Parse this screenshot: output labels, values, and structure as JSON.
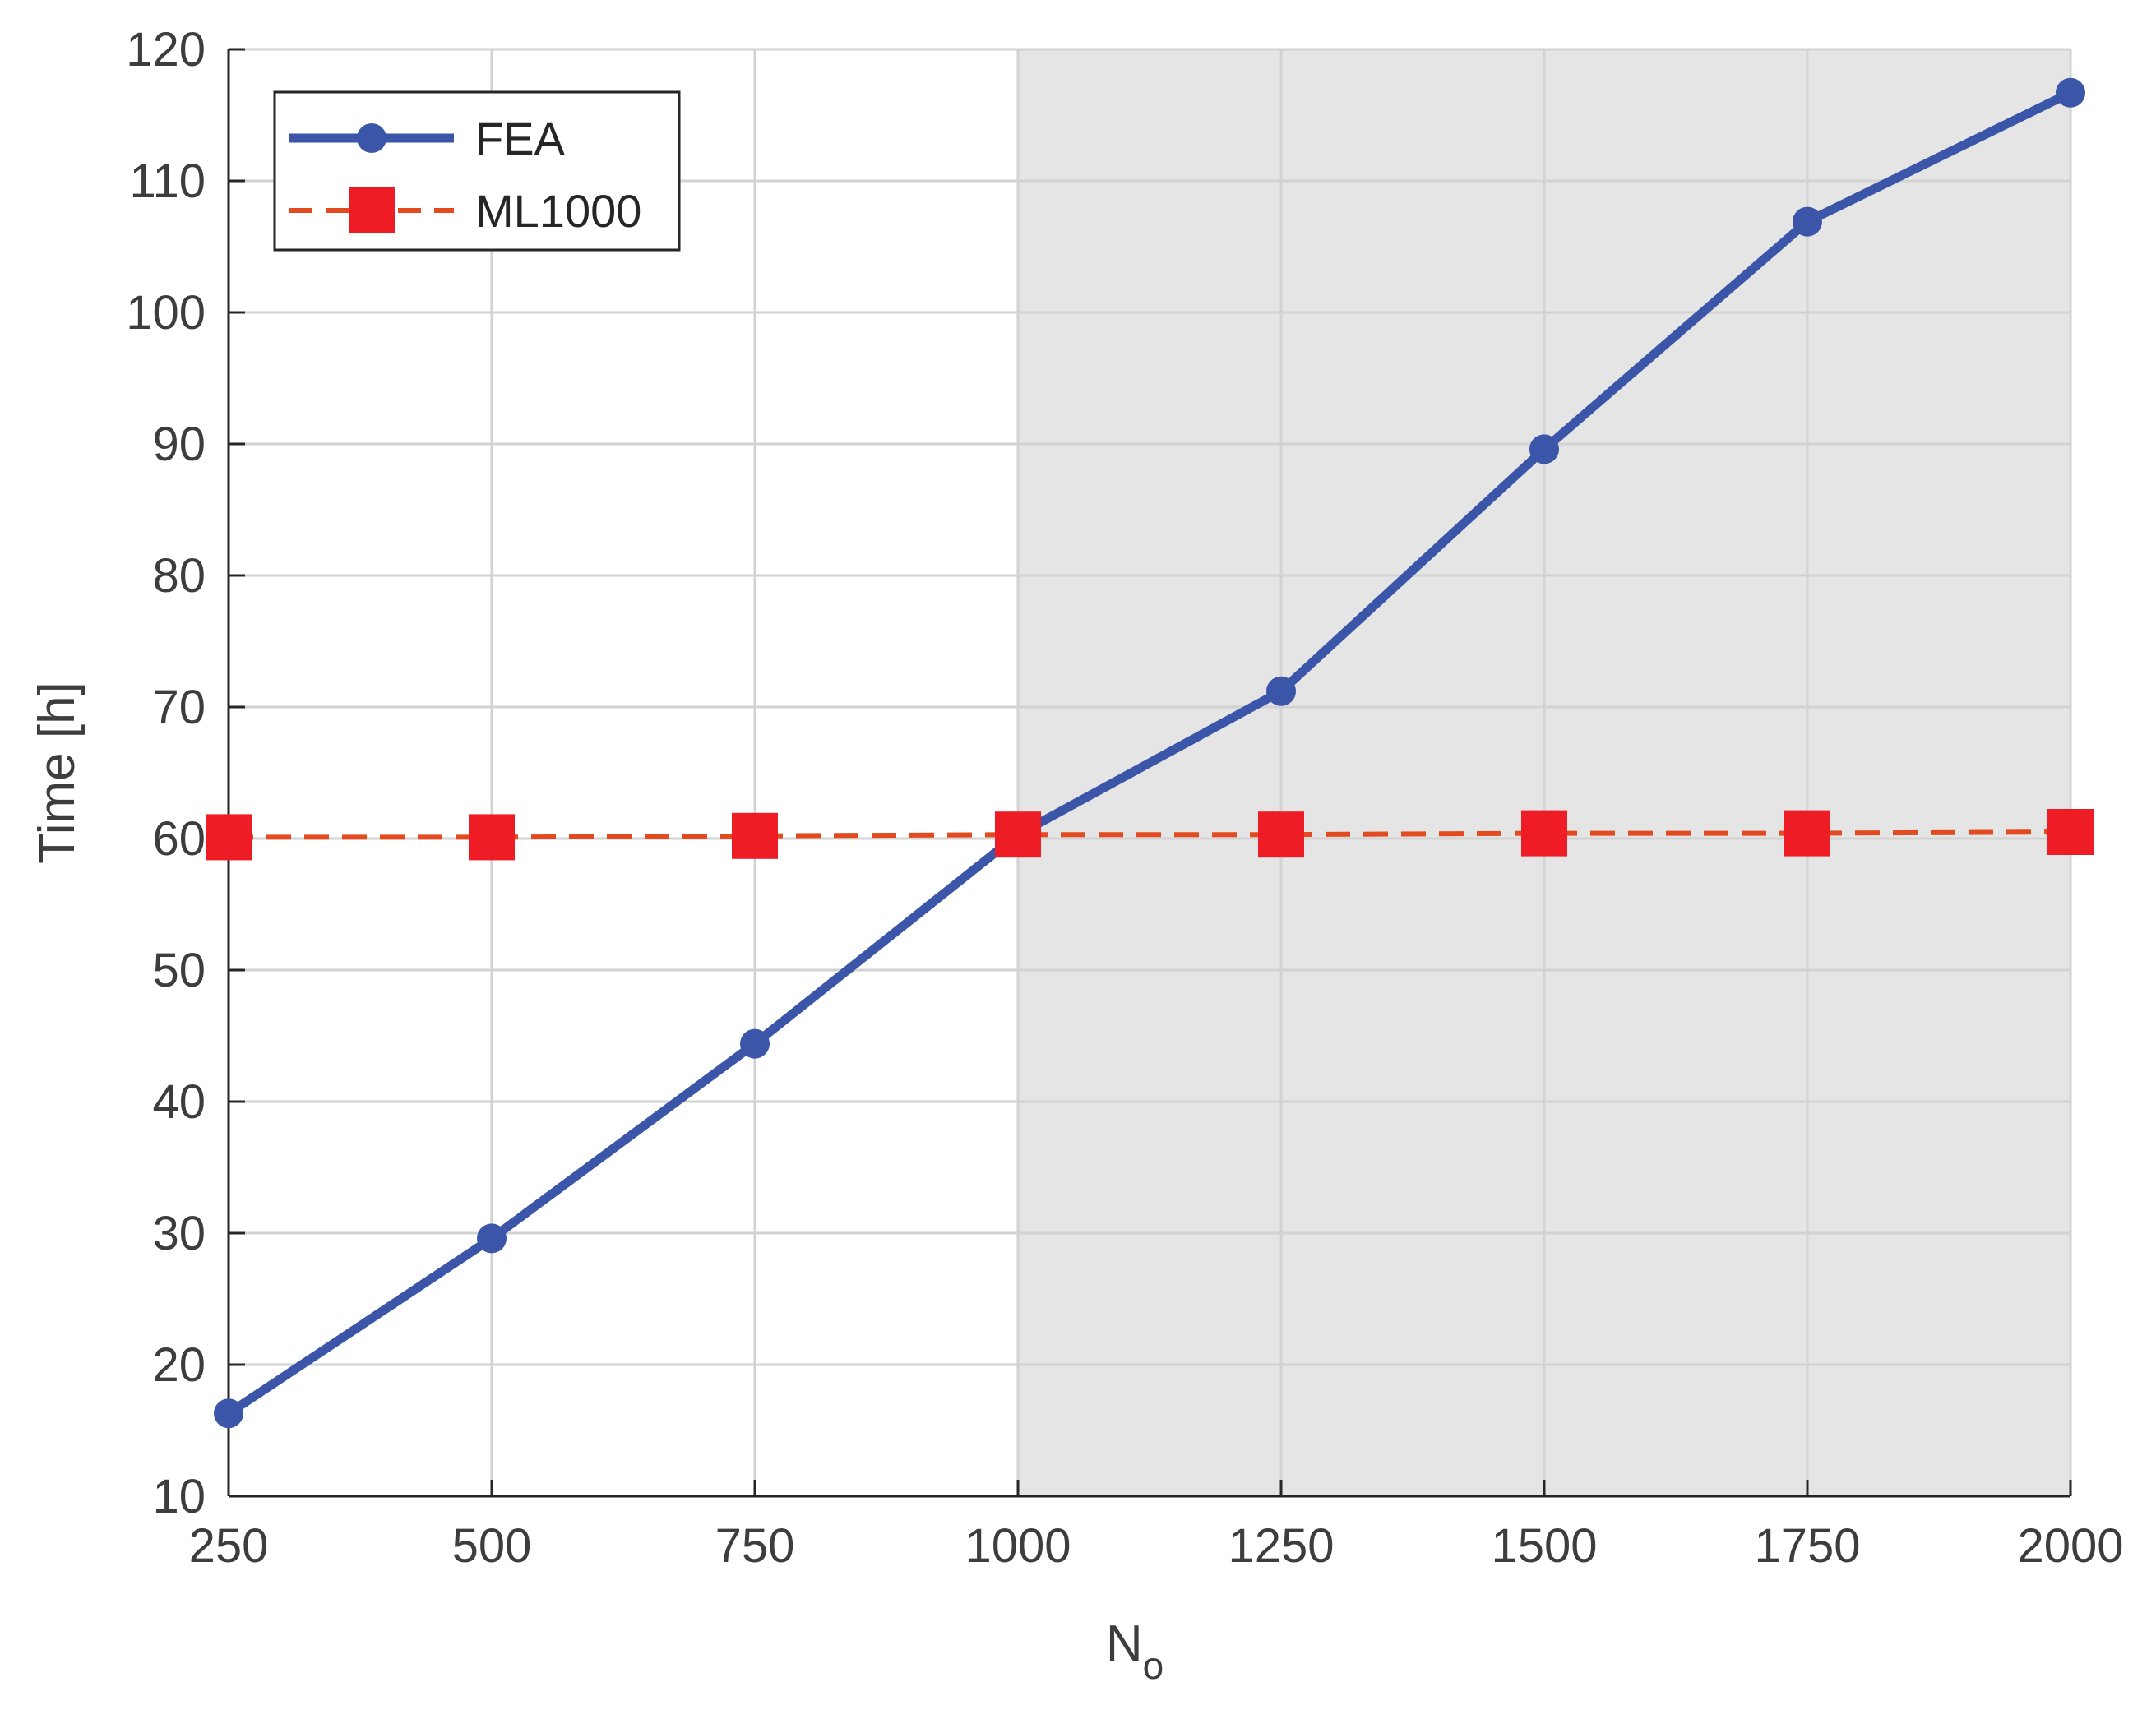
{
  "chart_data": {
    "type": "line",
    "x": [
      250,
      500,
      750,
      1000,
      1250,
      1500,
      1750,
      2000
    ],
    "series": [
      {
        "name": "FEA",
        "values": [
          16.3,
          29.6,
          44.4,
          60.3,
          71.2,
          89.6,
          106.9,
          116.7
        ],
        "color": "#3b55a8",
        "line_style": "solid",
        "marker": "circle"
      },
      {
        "name": "ML1000",
        "values": [
          60.1,
          60.1,
          60.2,
          60.3,
          60.3,
          60.4,
          60.4,
          60.5
        ],
        "color": "#e24a1f",
        "marker_color": "#ee1c25",
        "line_style": "dashed",
        "marker": "square"
      }
    ],
    "xlabel": "N",
    "xlabel_subscript": "o",
    "ylabel": "Time [h]",
    "xlim": [
      250,
      2000
    ],
    "ylim": [
      10,
      120
    ],
    "xticks": [
      "250",
      "500",
      "750",
      "1000",
      "1250",
      "1500",
      "1750",
      "2000"
    ],
    "yticks": [
      "10",
      "20",
      "30",
      "40",
      "50",
      "60",
      "70",
      "80",
      "90",
      "100",
      "110",
      "120"
    ],
    "shaded_region_x": [
      1000,
      2000
    ],
    "shaded_color": "#e5e5e5",
    "grid": true,
    "legend_position": "top-left"
  }
}
